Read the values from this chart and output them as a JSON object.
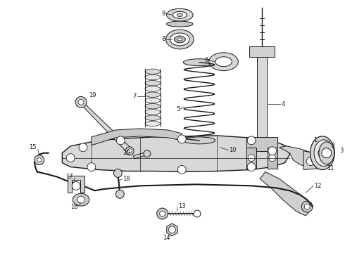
{
  "bg_color": "#ffffff",
  "lc": "#1a1a1a",
  "lw": 0.7,
  "fs": 6.0,
  "figsize": [
    4.9,
    3.6
  ],
  "dpi": 100,
  "xlim": [
    0,
    490
  ],
  "ylim": [
    0,
    360
  ]
}
